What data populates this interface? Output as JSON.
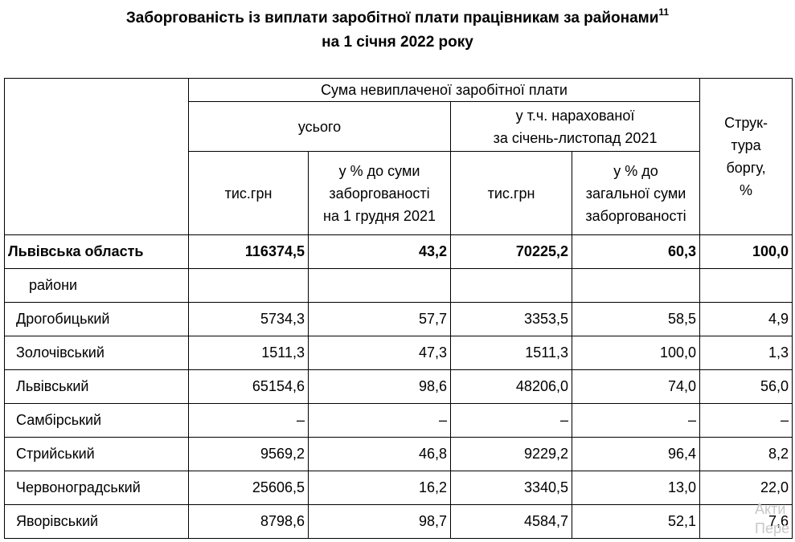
{
  "title": {
    "line1": "Заборгованість із виплати заробітної плати працівникам за районами",
    "footnote": "11",
    "line2": "на 1 січня 2022 року"
  },
  "header": {
    "sum_group": "Сума невиплаченої  заробітної плати",
    "total_group": "усього",
    "accrued_group_line1": "у т.ч. нарахованої",
    "accrued_group_line2": "за січень-листопад 2021",
    "structure_line1": "Струк-",
    "structure_line2": "тура",
    "structure_line3": "боргу,",
    "structure_line4": "%",
    "col_total_thous": "тис.грн",
    "col_total_pct_line1": "у % до суми",
    "col_total_pct_line2": "заборгованості",
    "col_total_pct_line3": "на 1 грудня 2021",
    "col_accrued_thous": "тис.грн",
    "col_accrued_pct_line1": "у % до",
    "col_accrued_pct_line2": "загальної суми",
    "col_accrued_pct_line3": "заборгованості"
  },
  "region_total": {
    "name": "Львівська область",
    "total": "116374,5",
    "total_pct": "43,2",
    "accrued": "70225,2",
    "accrued_pct": "60,3",
    "structure": "100,0"
  },
  "districts_label": "райони",
  "rows": [
    {
      "name": "Дрогобицький",
      "total": "5734,3",
      "total_pct": "57,7",
      "accrued": "3353,5",
      "accrued_pct": "58,5",
      "structure": "4,9"
    },
    {
      "name": "Золочівський",
      "total": "1511,3",
      "total_pct": "47,3",
      "accrued": "1511,3",
      "accrued_pct": "100,0",
      "structure": "1,3"
    },
    {
      "name": "Львівський",
      "total": "65154,6",
      "total_pct": "98,6",
      "accrued": "48206,0",
      "accrued_pct": "74,0",
      "structure": "56,0"
    },
    {
      "name": "Самбірський",
      "total": "–",
      "total_pct": "–",
      "accrued": "–",
      "accrued_pct": "–",
      "structure": "–"
    },
    {
      "name": "Стрийський",
      "total": "9569,2",
      "total_pct": "46,8",
      "accrued": "9229,2",
      "accrued_pct": "96,4",
      "structure": "8,2"
    },
    {
      "name": "Червоноградський",
      "total": "25606,5",
      "total_pct": "16,2",
      "accrued": "3340,5",
      "accrued_pct": "13,0",
      "structure": "22,0"
    },
    {
      "name": "Яворівський",
      "total": "8798,6",
      "total_pct": "98,7",
      "accrued": "4584,7",
      "accrued_pct": "52,1",
      "structure": "7,6"
    }
  ],
  "watermark": {
    "line1": "Акти",
    "line2": "Пере"
  }
}
